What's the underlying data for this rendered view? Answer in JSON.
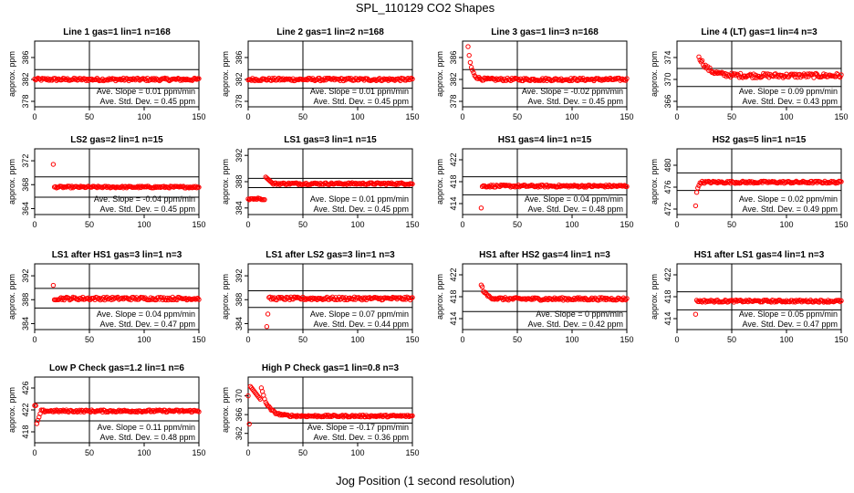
{
  "figure": {
    "title": "SPL_110129  CO2 Shapes",
    "xlabel": "Jog Position (1 second resolution)",
    "ylabel": "approx. ppm",
    "slope_prefix": "Ave. Slope = ",
    "slope_unit": " ppm/min",
    "std_prefix": "Ave. Std. Dev. = ",
    "std_unit": " ppm"
  },
  "chart_data": [
    {
      "type": "scatter",
      "title": "Line 1 gas=1 lin=1 n=168",
      "xlim": [
        0,
        150
      ],
      "ylim": [
        377,
        389
      ],
      "yticks": [
        378,
        382,
        386
      ],
      "xticks": [
        0,
        50,
        100,
        150
      ],
      "hlines": [
        383.8,
        380.4
      ],
      "vline": 50,
      "slope": "0.01",
      "std": "0.45",
      "series": {
        "color": "#ff0000",
        "kind": "flat",
        "x0": 0,
        "level": 382.0,
        "noise": 0.25
      }
    },
    {
      "type": "scatter",
      "title": "Line 2 gas=1 lin=2 n=168",
      "xlim": [
        0,
        150
      ],
      "ylim": [
        377,
        389
      ],
      "yticks": [
        378,
        382,
        386
      ],
      "xticks": [
        0,
        50,
        100,
        150
      ],
      "hlines": [
        383.8,
        380.4
      ],
      "vline": 50,
      "slope": "0.01",
      "std": "0.45",
      "series": {
        "color": "#ff0000",
        "kind": "flat",
        "x0": 0,
        "level": 382.0,
        "noise": 0.25
      }
    },
    {
      "type": "scatter",
      "title": "Line 3 gas=1 lin=3 n=168",
      "xlim": [
        0,
        150
      ],
      "ylim": [
        377,
        389
      ],
      "yticks": [
        378,
        382,
        386
      ],
      "xticks": [
        0,
        50,
        100,
        150
      ],
      "hlines": [
        383.8,
        380.4
      ],
      "vline": 50,
      "slope": "-0.02",
      "std": "0.45",
      "series": {
        "color": "#ff0000",
        "kind": "decay",
        "x0": 5,
        "level": 382.0,
        "start": 388.0,
        "tau": 3,
        "noise": 0.25
      }
    },
    {
      "type": "scatter",
      "title": "Line 4 (LT) gas=1 lin=4 n=3",
      "xlim": [
        0,
        150
      ],
      "ylim": [
        365,
        377
      ],
      "yticks": [
        366,
        370,
        374
      ],
      "xticks": [
        0,
        50,
        100,
        150
      ],
      "hlines": [
        372.0,
        368.7
      ],
      "vline": 50,
      "slope": "0.09",
      "std": "0.43",
      "series": {
        "color": "#ff0000",
        "kind": "decay",
        "x0": 20,
        "level": 370.7,
        "start": 374.3,
        "tau": 8,
        "noise": 0.4
      }
    },
    {
      "type": "scatter",
      "title": "LS2 gas=2 lin=1 n=15",
      "xlim": [
        0,
        150
      ],
      "ylim": [
        363,
        374
      ],
      "yticks": [
        364,
        368,
        372
      ],
      "xticks": [
        0,
        50,
        100,
        150
      ],
      "hlines": [
        369.3,
        365.9
      ],
      "vline": 50,
      "slope": "-0.04",
      "std": "0.45",
      "series": {
        "color": "#ff0000",
        "kind": "spike",
        "x0": 17,
        "level": 367.6,
        "first": 371.4,
        "noise": 0.15
      }
    },
    {
      "type": "scatter",
      "title": "LS1 gas=3 lin=1 n=15",
      "xlim": [
        0,
        150
      ],
      "ylim": [
        383,
        393
      ],
      "yticks": [
        384,
        388,
        392
      ],
      "xticks": [
        0,
        50,
        100,
        150
      ],
      "hlines": [
        388.5,
        387.1
      ],
      "vline": 50,
      "slope": "0.01",
      "std": "0.45",
      "series": {
        "color": "#ff0000",
        "kind": "step",
        "x0": 0,
        "level": 387.7,
        "pre": 385.4,
        "step_at": 16,
        "overshoot": 388.7,
        "noise": 0.15
      }
    },
    {
      "type": "scatter",
      "title": "HS1 gas=4 lin=1 n=15",
      "xlim": [
        0,
        150
      ],
      "ylim": [
        412,
        424
      ],
      "yticks": [
        414,
        418,
        422
      ],
      "xticks": [
        0,
        50,
        100,
        150
      ],
      "hlines": [
        418.9,
        415.6
      ],
      "vline": 50,
      "slope": "0.04",
      "std": "0.48",
      "series": {
        "color": "#ff0000",
        "kind": "spike",
        "x0": 17,
        "level": 417.2,
        "first": 413.2,
        "noise": 0.2
      }
    },
    {
      "type": "scatter",
      "title": "HS2 gas=5 lin=1 n=15",
      "xlim": [
        0,
        150
      ],
      "ylim": [
        471,
        483
      ],
      "yticks": [
        472,
        476,
        480
      ],
      "xticks": [
        0,
        50,
        100,
        150
      ],
      "hlines": [
        478.6,
        475.4
      ],
      "vline": 50,
      "slope": "0.02",
      "std": "0.49",
      "series": {
        "color": "#ff0000",
        "kind": "dip",
        "x0": 17,
        "level": 476.9,
        "first": 472.6,
        "noise": 0.2
      }
    },
    {
      "type": "scatter",
      "title": "LS1 after HS1 gas=3 lin=1 n=3",
      "xlim": [
        0,
        150
      ],
      "ylim": [
        383,
        394
      ],
      "yticks": [
        384,
        388,
        392
      ],
      "xticks": [
        0,
        50,
        100,
        150
      ],
      "hlines": [
        389.9,
        386.6
      ],
      "vline": 50,
      "slope": "0.04",
      "std": "0.47",
      "series": {
        "color": "#ff0000",
        "kind": "spike",
        "x0": 17,
        "level": 388.2,
        "first": 390.4,
        "noise": 0.25
      }
    },
    {
      "type": "scatter",
      "title": "LS1 after LS2 gas=3 lin=1 n=3",
      "xlim": [
        0,
        150
      ],
      "ylim": [
        383,
        394
      ],
      "yticks": [
        384,
        388,
        392
      ],
      "xticks": [
        0,
        50,
        100,
        150
      ],
      "hlines": [
        389.5,
        386.7
      ],
      "vline": 50,
      "slope": "0.07",
      "std": "0.44",
      "series": {
        "color": "#ff0000",
        "kind": "spike2",
        "x0": 17,
        "level": 388.2,
        "first": 383.5,
        "second": 385.6,
        "noise": 0.25
      }
    },
    {
      "type": "scatter",
      "title": "HS1 after HS2 gas=4 lin=1 n=3",
      "xlim": [
        0,
        150
      ],
      "ylim": [
        412,
        424
      ],
      "yticks": [
        414,
        418,
        422
      ],
      "xticks": [
        0,
        50,
        100,
        150
      ],
      "hlines": [
        419.0,
        415.3
      ],
      "vline": 50,
      "slope": "0",
      "std": "0.42",
      "series": {
        "color": "#ff0000",
        "kind": "decay",
        "x0": 17,
        "level": 417.6,
        "start": 420.2,
        "tau": 4,
        "noise": 0.25
      }
    },
    {
      "type": "scatter",
      "title": "HS1 after LS1 gas=4 lin=1 n=3",
      "xlim": [
        0,
        150
      ],
      "ylim": [
        412,
        424
      ],
      "yticks": [
        414,
        418,
        422
      ],
      "xticks": [
        0,
        50,
        100,
        150
      ],
      "hlines": [
        418.9,
        415.6
      ],
      "vline": 50,
      "slope": "0.05",
      "std": "0.47",
      "series": {
        "color": "#ff0000",
        "kind": "spike",
        "x0": 17,
        "level": 417.2,
        "first": 414.8,
        "noise": 0.2
      }
    },
    {
      "type": "scatter",
      "title": "Low P Check gas=1.2 lin=1 n=6",
      "xlim": [
        0,
        150
      ],
      "ylim": [
        416,
        428
      ],
      "yticks": [
        418,
        422,
        426
      ],
      "xticks": [
        0,
        50,
        100,
        150
      ],
      "hlines": [
        423.3,
        420.0
      ],
      "vline": 50,
      "slope": "0.11",
      "std": "0.48",
      "series": {
        "color": "#ff0000",
        "kind": "lowp",
        "x0": 0,
        "level": 421.8,
        "noise": 0.2
      }
    },
    {
      "type": "scatter",
      "title": "High P Check gas=1 lin=0.8 n=3",
      "xlim": [
        0,
        150
      ],
      "ylim": [
        360,
        374
      ],
      "yticks": [
        362,
        366,
        370
      ],
      "xticks": [
        0,
        50,
        100,
        150
      ],
      "hlines": [
        367.4,
        364.2
      ],
      "vline": 50,
      "slope": "-0.17",
      "std": "0.36",
      "series": {
        "color": "#ff0000",
        "kind": "highp",
        "x0": 0,
        "level": 365.7,
        "noise": 0.2
      }
    }
  ]
}
